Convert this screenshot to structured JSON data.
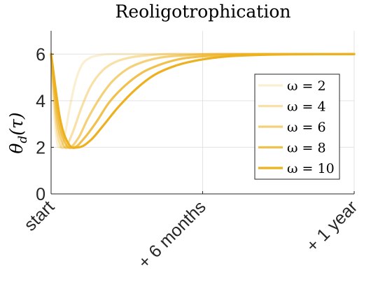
{
  "chart_data": {
    "type": "line",
    "title": "Reoligotrophication",
    "ylabel": "θ_d(τ)",
    "xlabel": "",
    "x_ticks": [
      "start",
      "+ 6 months",
      "+ 1 year"
    ],
    "x_tick_values": [
      0,
      0.5,
      1
    ],
    "xlim": [
      0,
      1
    ],
    "ylim": [
      0,
      7
    ],
    "y_ticks": [
      0,
      2,
      4,
      6
    ],
    "grid": true,
    "legend_position": "right",
    "series": [
      {
        "name": "ω = 2",
        "color": "#EDB120",
        "opacity": 0.2,
        "x": [
          0,
          0.01,
          0.02,
          0.03,
          0.045,
          0.06,
          0.08,
          0.1,
          0.13,
          0.16,
          0.2,
          0.3,
          0.5,
          1
        ],
        "values": [
          6,
          3.5,
          2.2,
          2.0,
          2.5,
          3.6,
          4.8,
          5.5,
          5.85,
          5.95,
          6,
          6,
          6,
          6
        ]
      },
      {
        "name": "ω = 4",
        "color": "#EDB120",
        "opacity": 0.4,
        "x": [
          0,
          0.015,
          0.03,
          0.045,
          0.07,
          0.1,
          0.13,
          0.17,
          0.21,
          0.26,
          0.32,
          0.4,
          0.5,
          1
        ],
        "values": [
          6,
          3.3,
          2.1,
          2.0,
          2.6,
          3.7,
          4.6,
          5.3,
          5.65,
          5.85,
          5.95,
          6,
          6,
          6
        ]
      },
      {
        "name": "ω = 6",
        "color": "#EDB120",
        "opacity": 0.6,
        "x": [
          0,
          0.02,
          0.04,
          0.06,
          0.09,
          0.12,
          0.16,
          0.2,
          0.25,
          0.3,
          0.36,
          0.45,
          0.55,
          1
        ],
        "values": [
          6,
          3.2,
          2.1,
          2.0,
          2.4,
          3.2,
          4.1,
          4.8,
          5.35,
          5.65,
          5.85,
          5.95,
          6,
          6
        ]
      },
      {
        "name": "ω = 8",
        "color": "#EDB120",
        "opacity": 0.8,
        "x": [
          0,
          0.025,
          0.05,
          0.075,
          0.11,
          0.15,
          0.19,
          0.24,
          0.3,
          0.36,
          0.43,
          0.52,
          0.62,
          1
        ],
        "values": [
          6,
          3.2,
          2.1,
          2.0,
          2.4,
          3.1,
          3.9,
          4.6,
          5.2,
          5.55,
          5.8,
          5.92,
          5.98,
          6
        ]
      },
      {
        "name": "ω = 10",
        "color": "#EDB120",
        "opacity": 1.0,
        "x": [
          0,
          0.03,
          0.06,
          0.09,
          0.13,
          0.17,
          0.22,
          0.28,
          0.34,
          0.41,
          0.49,
          0.58,
          0.7,
          1
        ],
        "values": [
          6,
          3.2,
          2.1,
          2.0,
          2.3,
          2.9,
          3.7,
          4.5,
          5.1,
          5.5,
          5.75,
          5.9,
          5.97,
          6
        ]
      }
    ]
  }
}
